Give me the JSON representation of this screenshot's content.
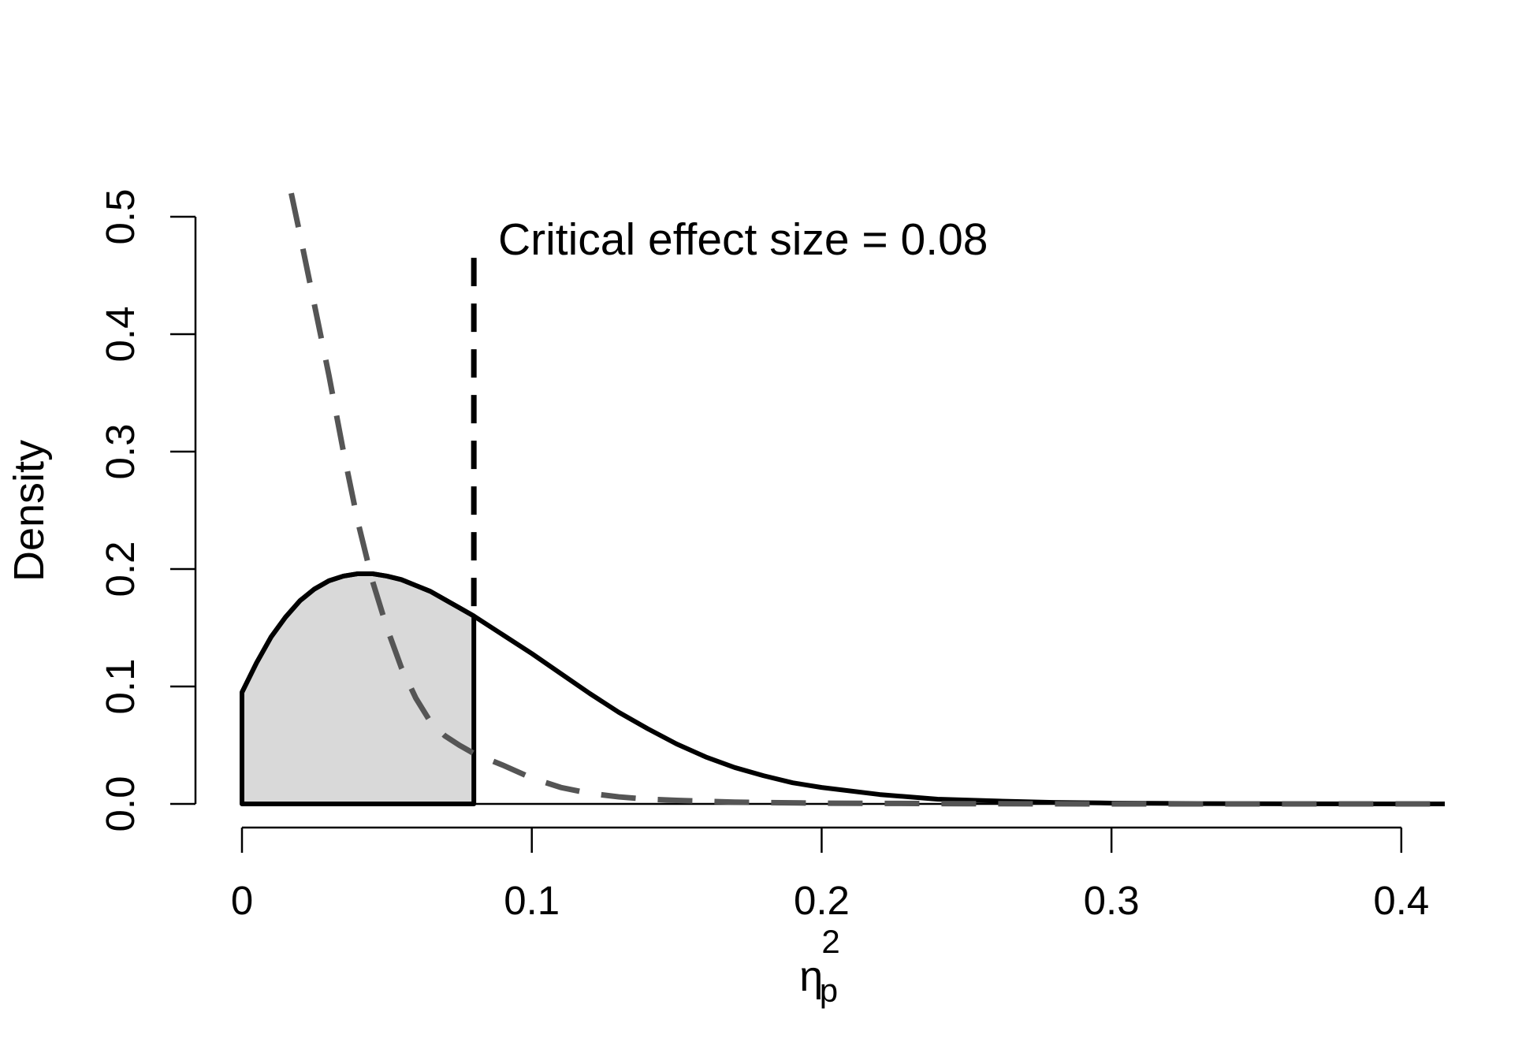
{
  "chart_data": {
    "type": "area",
    "title": "",
    "xlabel": {
      "main": "η",
      "subscript": "p",
      "superscript": "2"
    },
    "ylabel": "Density",
    "xlim": [
      0,
      0.415
    ],
    "ylim": [
      0,
      0.5
    ],
    "x_ticks": [
      0,
      0.1,
      0.2,
      0.3,
      0.4
    ],
    "x_tick_labels": [
      "0",
      "0.1",
      "0.2",
      "0.3",
      "0.4"
    ],
    "y_ticks": [
      0,
      0.1,
      0.2,
      0.3,
      0.4,
      0.5
    ],
    "y_tick_labels": [
      "0.0",
      "0.1",
      "0.2",
      "0.3",
      "0.4",
      "0.5"
    ],
    "grid": false,
    "legend": null,
    "critical_value": 0.08,
    "annotation": "Critical effect size =  0.08",
    "colors": {
      "solid_curve": "#000000",
      "dashed_curve": "#555555",
      "shaded_region": "#d9d9d9"
    },
    "series": [
      {
        "style": "solid",
        "points": [
          [
            0.0,
            0.095
          ],
          [
            0.005,
            0.12
          ],
          [
            0.01,
            0.142
          ],
          [
            0.015,
            0.159
          ],
          [
            0.02,
            0.173
          ],
          [
            0.025,
            0.183
          ],
          [
            0.03,
            0.19
          ],
          [
            0.035,
            0.194
          ],
          [
            0.04,
            0.196
          ],
          [
            0.045,
            0.196
          ],
          [
            0.05,
            0.194
          ],
          [
            0.055,
            0.191
          ],
          [
            0.06,
            0.186
          ],
          [
            0.065,
            0.181
          ],
          [
            0.07,
            0.174
          ],
          [
            0.075,
            0.167
          ],
          [
            0.08,
            0.16
          ],
          [
            0.09,
            0.144
          ],
          [
            0.1,
            0.128
          ],
          [
            0.11,
            0.111
          ],
          [
            0.12,
            0.094
          ],
          [
            0.13,
            0.078
          ],
          [
            0.14,
            0.064
          ],
          [
            0.15,
            0.051
          ],
          [
            0.16,
            0.04
          ],
          [
            0.17,
            0.031
          ],
          [
            0.18,
            0.024
          ],
          [
            0.19,
            0.018
          ],
          [
            0.2,
            0.014
          ],
          [
            0.22,
            0.008
          ],
          [
            0.24,
            0.004
          ],
          [
            0.26,
            0.0025
          ],
          [
            0.28,
            0.0013
          ],
          [
            0.3,
            0.0007
          ],
          [
            0.33,
            0.0003
          ],
          [
            0.36,
            0.0001
          ],
          [
            0.415,
            0.0
          ]
        ]
      },
      {
        "style": "dashed",
        "points": [
          [
            0.017,
            0.52
          ],
          [
            0.02,
            0.485
          ],
          [
            0.025,
            0.425
          ],
          [
            0.03,
            0.365
          ],
          [
            0.035,
            0.3
          ],
          [
            0.04,
            0.24
          ],
          [
            0.045,
            0.19
          ],
          [
            0.05,
            0.15
          ],
          [
            0.055,
            0.116
          ],
          [
            0.06,
            0.09
          ],
          [
            0.065,
            0.07
          ],
          [
            0.07,
            0.058
          ],
          [
            0.075,
            0.05
          ],
          [
            0.08,
            0.043
          ],
          [
            0.09,
            0.033
          ],
          [
            0.1,
            0.022
          ],
          [
            0.11,
            0.014
          ],
          [
            0.12,
            0.009
          ],
          [
            0.13,
            0.006
          ],
          [
            0.14,
            0.004
          ],
          [
            0.15,
            0.003
          ],
          [
            0.17,
            0.0015
          ],
          [
            0.2,
            0.0006
          ],
          [
            0.25,
            0.0002
          ],
          [
            0.3,
            0.0
          ],
          [
            0.415,
            0.0
          ]
        ]
      }
    ]
  }
}
